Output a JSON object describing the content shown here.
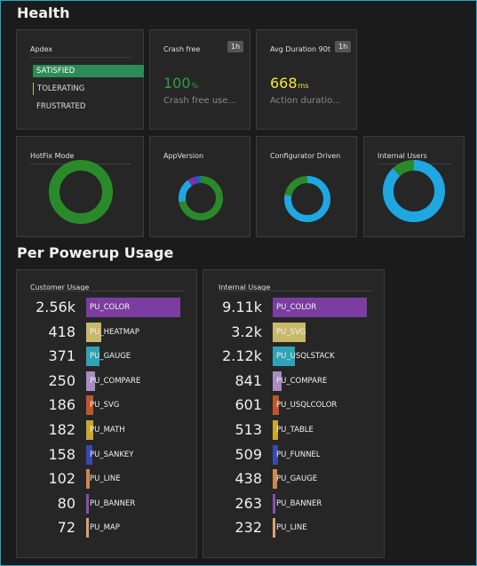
{
  "health": {
    "title": "Health",
    "apdex": {
      "title": "Apdex",
      "items": [
        {
          "label": "SATISFIED",
          "color": "#2e8b57"
        },
        {
          "label": "TOLERATING",
          "color": "#c9b458"
        },
        {
          "label": "FRUSTRATED",
          "color": "#c0392b"
        }
      ]
    },
    "crash_free": {
      "title": "Crash free",
      "badge": "1h",
      "value": "100",
      "unit": "%",
      "value_color": "#2ea043",
      "sub": "Crash free use..."
    },
    "avg_duration": {
      "title": "Avg Duration 90t",
      "badge": "1h",
      "value": "668",
      "unit": "ms",
      "value_color": "#f5e93a",
      "sub": "Action duratio..."
    },
    "donuts": [
      {
        "title": "HotFix Mode",
        "segments": [
          {
            "value": 1.0,
            "color": "#2a8a2a"
          }
        ]
      },
      {
        "title": "AppVersion",
        "segments": [
          {
            "value": 0.72,
            "color": "#2a8a2a"
          },
          {
            "value": 0.18,
            "color": "#1ea7e1"
          },
          {
            "value": 0.06,
            "color": "#7b2fa8"
          },
          {
            "value": 0.04,
            "color": "#1c5fbf"
          }
        ]
      },
      {
        "title": "Configurator Driven",
        "segments": [
          {
            "value": 0.78,
            "color": "#1ea7e1"
          },
          {
            "value": 0.22,
            "color": "#2a8a2a"
          }
        ]
      },
      {
        "title": "Internal Users",
        "segments": [
          {
            "value": 0.88,
            "color": "#1ea7e1"
          },
          {
            "value": 0.12,
            "color": "#2a8a2a"
          }
        ]
      }
    ]
  },
  "powerup": {
    "title": "Per Powerup Usage",
    "customer": {
      "title": "Customer Usage",
      "max": 2560,
      "rows": [
        {
          "value": "2.56k",
          "num": 2560,
          "label": "PU_COLOR",
          "color": "#7b3ea0"
        },
        {
          "value": "418",
          "num": 418,
          "label": "PU_HEATMAP",
          "color": "#c8b86a"
        },
        {
          "value": "371",
          "num": 371,
          "label": "PU_GAUGE",
          "color": "#2ea3b5"
        },
        {
          "value": "250",
          "num": 250,
          "label": "PU_COMPARE",
          "color": "#a78bc2"
        },
        {
          "value": "186",
          "num": 186,
          "label": "PU_SVG",
          "color": "#c0562a"
        },
        {
          "value": "182",
          "num": 182,
          "label": "PU_MATH",
          "color": "#c9a82a"
        },
        {
          "value": "158",
          "num": 158,
          "label": "PU_SANKEY",
          "color": "#3a47b0"
        },
        {
          "value": "102",
          "num": 102,
          "label": "PU_LINE",
          "color": "#d1874a"
        },
        {
          "value": "80",
          "num": 80,
          "label": "PU_BANNER",
          "color": "#8a4fb0"
        },
        {
          "value": "72",
          "num": 72,
          "label": "PU_MAP",
          "color": "#e0a070"
        }
      ]
    },
    "internal": {
      "title": "Internal Usage",
      "max": 9110,
      "rows": [
        {
          "value": "9.11k",
          "num": 9110,
          "label": "PU_COLOR",
          "color": "#7b3ea0"
        },
        {
          "value": "3.2k",
          "num": 3200,
          "label": "PU_SVG",
          "color": "#c8b86a"
        },
        {
          "value": "2.12k",
          "num": 2120,
          "label": "PU_USQLSTACK",
          "color": "#2ea3b5"
        },
        {
          "value": "841",
          "num": 841,
          "label": "PU_COMPARE",
          "color": "#a78bc2"
        },
        {
          "value": "601",
          "num": 601,
          "label": "PU_USQLCOLOR",
          "color": "#c0562a"
        },
        {
          "value": "513",
          "num": 513,
          "label": "PU_TABLE",
          "color": "#c9a82a"
        },
        {
          "value": "509",
          "num": 509,
          "label": "PU_FUNNEL",
          "color": "#3a47b0"
        },
        {
          "value": "438",
          "num": 438,
          "label": "PU_GAUGE",
          "color": "#d1874a"
        },
        {
          "value": "263",
          "num": 263,
          "label": "PU_BANNER",
          "color": "#8a4fb0"
        },
        {
          "value": "232",
          "num": 232,
          "label": "PU_LINE",
          "color": "#e0a070"
        }
      ]
    }
  }
}
